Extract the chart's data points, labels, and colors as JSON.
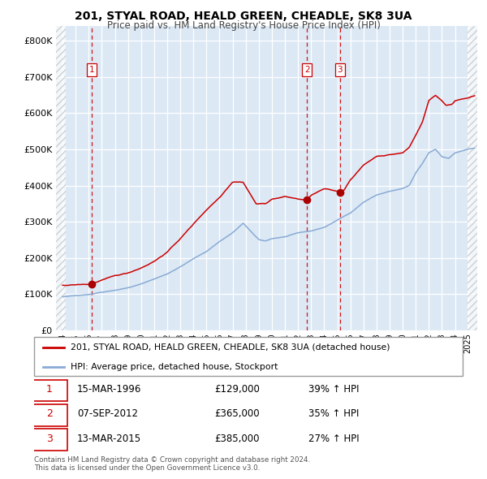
{
  "title1": "201, STYAL ROAD, HEALD GREEN, CHEADLE, SK8 3UA",
  "title2": "Price paid vs. HM Land Registry's House Price Index (HPI)",
  "legend_label1": "201, STYAL ROAD, HEALD GREEN, CHEADLE, SK8 3UA (detached house)",
  "legend_label2": "HPI: Average price, detached house, Stockport",
  "property_color": "#cc0000",
  "hpi_color": "#88aad4",
  "bg_color": "#dce9f5",
  "sales": [
    {
      "num": 1,
      "date_num": 1996.21,
      "price": 129000,
      "label": "15-MAR-1996",
      "pct": "39%",
      "dir": "↑"
    },
    {
      "num": 2,
      "date_num": 2012.68,
      "price": 365000,
      "label": "07-SEP-2012",
      "pct": "35%",
      "dir": "↑"
    },
    {
      "num": 3,
      "date_num": 2015.19,
      "price": 385000,
      "label": "13-MAR-2015",
      "pct": "27%",
      "dir": "↑"
    }
  ],
  "ylim": [
    0,
    840000
  ],
  "xlim_left": 1993.5,
  "xlim_right": 2025.7,
  "yticks": [
    0,
    100000,
    200000,
    300000,
    400000,
    500000,
    600000,
    700000,
    800000
  ],
  "copyright": "Contains HM Land Registry data © Crown copyright and database right 2024.\nThis data is licensed under the Open Government Licence v3.0."
}
